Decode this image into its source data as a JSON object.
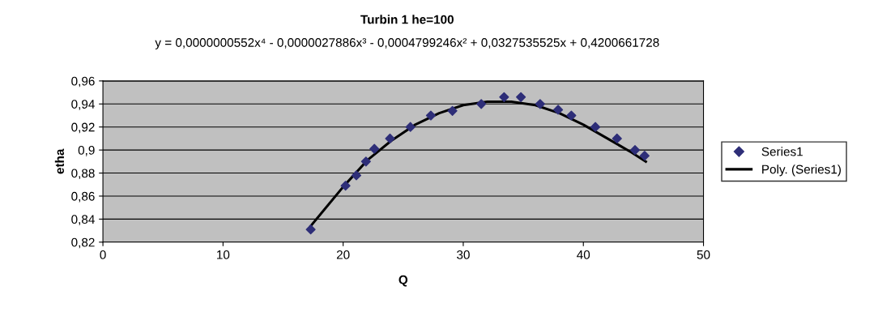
{
  "chart_data": {
    "type": "scatter",
    "title": "Turbin 1 he=100",
    "xlabel": "Q",
    "ylabel": "etha",
    "annotations": [
      "y = 0,0000000552x⁴ - 0,0000027886x³ - 0,0004799246x² + 0,0327535525x + 0,4200661728"
    ],
    "series": [
      {
        "name": "Series1",
        "color": "#2e2e78",
        "marker": "diamond",
        "x": [
          17.3,
          20.2,
          21.1,
          21.9,
          22.6,
          23.9,
          25.6,
          27.3,
          29.1,
          31.5,
          33.4,
          34.8,
          36.4,
          37.9,
          39.0,
          41.0,
          42.8,
          44.3,
          45.1
        ],
        "values": [
          0.831,
          0.869,
          0.878,
          0.89,
          0.901,
          0.91,
          0.92,
          0.93,
          0.934,
          0.94,
          0.946,
          0.946,
          0.94,
          0.935,
          0.93,
          0.92,
          0.91,
          0.9,
          0.895
        ]
      },
      {
        "name": "Poly. (Series1)",
        "type": "line",
        "color": "#000000",
        "marker": "none",
        "line_style": "solid",
        "x": [
          17.3,
          20,
          22,
          24,
          26,
          28,
          30,
          32,
          34,
          36,
          38,
          40,
          42,
          44,
          45.2
        ],
        "values": [
          0.834,
          0.868,
          0.891,
          0.908,
          0.922,
          0.932,
          0.939,
          0.942,
          0.942,
          0.939,
          0.932,
          0.922,
          0.91,
          0.898,
          0.89
        ]
      }
    ],
    "xlim": [
      0,
      50
    ],
    "xticks": [
      0,
      10,
      20,
      30,
      40,
      50
    ],
    "ylim": [
      0.82,
      0.96
    ],
    "yticks": [
      {
        "value": 0.82,
        "label": "0,82"
      },
      {
        "value": 0.84,
        "label": "0,84"
      },
      {
        "value": 0.86,
        "label": "0,86"
      },
      {
        "value": 0.88,
        "label": "0,88"
      },
      {
        "value": 0.9,
        "label": "0,9"
      },
      {
        "value": 0.92,
        "label": "0,92"
      },
      {
        "value": 0.94,
        "label": "0,94"
      },
      {
        "value": 0.96,
        "label": "0,96"
      }
    ],
    "grid": "y",
    "legend": "right"
  }
}
